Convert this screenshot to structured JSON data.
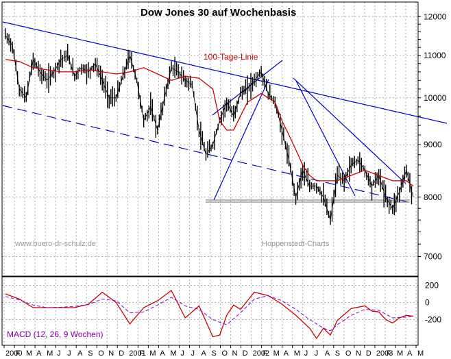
{
  "title": "Dow Jones 30 auf Wochenbasis",
  "watermark": "www.buero-dr-schulz.de",
  "source": "Hoppenstedt-Charts",
  "ma_label": "100-Tage-Linie",
  "macd_label": "MACD (12, 26, 9 Wochen)",
  "colors": {
    "price": "#000000",
    "ma": "#cc0000",
    "trend": "#0000cc",
    "macd": "#cc0000",
    "signal": "#8800cc",
    "grid": "#aaaaaa",
    "support": "#666666",
    "macd_text": "#8800aa"
  },
  "chart_data": {
    "type": "line",
    "title": "Dow Jones 30 auf Wochenbasis",
    "scale": "log",
    "y_ticks": [
      7000,
      8000,
      9000,
      10000,
      11000,
      12000
    ],
    "ylim": [
      6700,
      12400
    ],
    "x_ticks": [
      "2000",
      "F",
      "M",
      "A",
      "M",
      "J",
      "J",
      "A",
      "S",
      "O",
      "N",
      "D",
      "2001",
      "F",
      "M",
      "A",
      "M",
      "J",
      "J",
      "A",
      "S",
      "O",
      "N",
      "D",
      "2002",
      "F",
      "M",
      "A",
      "M",
      "J",
      "J",
      "A",
      "S",
      "O",
      "N",
      "D",
      "2003",
      "F",
      "M",
      "A",
      "M"
    ],
    "price": [
      [
        0,
        11500
      ],
      [
        1,
        11250
      ],
      [
        2,
        10200
      ],
      [
        3,
        10000
      ],
      [
        4,
        10900
      ],
      [
        5,
        10600
      ],
      [
        6,
        10400
      ],
      [
        7,
        10600
      ],
      [
        8,
        10900
      ],
      [
        9,
        11000
      ],
      [
        10,
        10500
      ],
      [
        11,
        10700
      ],
      [
        12,
        10600
      ],
      [
        13,
        10800
      ],
      [
        14,
        10400
      ],
      [
        15,
        10000
      ],
      [
        16,
        10000
      ],
      [
        17,
        10500
      ],
      [
        18,
        11000
      ],
      [
        19,
        10400
      ],
      [
        20,
        9500
      ],
      [
        21,
        9800
      ],
      [
        22,
        9300
      ],
      [
        23,
        10000
      ],
      [
        24,
        10700
      ],
      [
        25,
        10600
      ],
      [
        26,
        10400
      ],
      [
        27,
        10300
      ],
      [
        28,
        9300
      ],
      [
        29,
        8800
      ],
      [
        30,
        9000
      ],
      [
        31,
        9500
      ],
      [
        32,
        9900
      ],
      [
        33,
        9600
      ],
      [
        34,
        10100
      ],
      [
        35,
        10200
      ],
      [
        36,
        10400
      ],
      [
        37,
        10600
      ],
      [
        38,
        10100
      ],
      [
        39,
        9900
      ],
      [
        40,
        9300
      ],
      [
        41,
        8700
      ],
      [
        42,
        8000
      ],
      [
        43,
        8500
      ],
      [
        44,
        8200
      ],
      [
        45,
        8200
      ],
      [
        46,
        8000
      ],
      [
        47,
        7600
      ],
      [
        48,
        8400
      ],
      [
        49,
        8300
      ],
      [
        50,
        8600
      ],
      [
        51,
        8700
      ],
      [
        52,
        8500
      ],
      [
        53,
        8200
      ],
      [
        54,
        8400
      ],
      [
        55,
        8000
      ],
      [
        56,
        7800
      ],
      [
        57,
        8100
      ],
      [
        58,
        8500
      ],
      [
        59,
        8000
      ]
    ],
    "ma100": [
      [
        0,
        10900
      ],
      [
        2,
        10850
      ],
      [
        4,
        10700
      ],
      [
        6,
        10650
      ],
      [
        8,
        10600
      ],
      [
        10,
        10600
      ],
      [
        12,
        10650
      ],
      [
        14,
        10600
      ],
      [
        16,
        10550
      ],
      [
        18,
        10600
      ],
      [
        20,
        10700
      ],
      [
        22,
        10550
      ],
      [
        24,
        10400
      ],
      [
        26,
        10500
      ],
      [
        28,
        10450
      ],
      [
        30,
        10200
      ],
      [
        31,
        9500
      ],
      [
        32,
        9300
      ],
      [
        33,
        9300
      ],
      [
        34,
        9600
      ],
      [
        35,
        9900
      ],
      [
        36,
        10000
      ],
      [
        37,
        10100
      ],
      [
        38,
        10000
      ],
      [
        39,
        9900
      ],
      [
        40,
        9500
      ],
      [
        41,
        9200
      ],
      [
        42,
        8900
      ],
      [
        43,
        8600
      ],
      [
        44,
        8400
      ],
      [
        45,
        8300
      ],
      [
        46,
        8300
      ],
      [
        47,
        8300
      ],
      [
        48,
        8300
      ],
      [
        50,
        8400
      ],
      [
        52,
        8500
      ],
      [
        54,
        8400
      ],
      [
        56,
        8300
      ],
      [
        58,
        8300
      ],
      [
        59,
        8200
      ]
    ],
    "support": 8000,
    "macd": [
      [
        0,
        100
      ],
      [
        2,
        40
      ],
      [
        4,
        -60
      ],
      [
        6,
        -60
      ],
      [
        8,
        -60
      ],
      [
        10,
        -60
      ],
      [
        12,
        -20
      ],
      [
        14,
        120
      ],
      [
        16,
        0
      ],
      [
        18,
        -250
      ],
      [
        20,
        -60
      ],
      [
        22,
        20
      ],
      [
        24,
        140
      ],
      [
        26,
        -180
      ],
      [
        28,
        -40
      ],
      [
        30,
        -400
      ],
      [
        31,
        -380
      ],
      [
        32,
        -150
      ],
      [
        33,
        -30
      ],
      [
        34,
        -80
      ],
      [
        36,
        120
      ],
      [
        38,
        80
      ],
      [
        40,
        -20
      ],
      [
        42,
        -150
      ],
      [
        44,
        -300
      ],
      [
        45,
        -420
      ],
      [
        46,
        -300
      ],
      [
        47,
        -380
      ],
      [
        48,
        -210
      ],
      [
        50,
        -70
      ],
      [
        52,
        -40
      ],
      [
        53,
        -100
      ],
      [
        54,
        -110
      ],
      [
        55,
        -200
      ],
      [
        56,
        -240
      ],
      [
        57,
        -180
      ],
      [
        58,
        -150
      ],
      [
        59,
        -160
      ]
    ],
    "signal": [
      [
        0,
        70
      ],
      [
        2,
        30
      ],
      [
        4,
        -30
      ],
      [
        6,
        -60
      ],
      [
        8,
        -55
      ],
      [
        10,
        -45
      ],
      [
        12,
        -25
      ],
      [
        14,
        40
      ],
      [
        16,
        20
      ],
      [
        18,
        -120
      ],
      [
        20,
        -110
      ],
      [
        22,
        -30
      ],
      [
        24,
        60
      ],
      [
        26,
        -40
      ],
      [
        28,
        -80
      ],
      [
        30,
        -200
      ],
      [
        32,
        -260
      ],
      [
        34,
        -120
      ],
      [
        36,
        40
      ],
      [
        38,
        80
      ],
      [
        40,
        20
      ],
      [
        42,
        -80
      ],
      [
        44,
        -200
      ],
      [
        46,
        -300
      ],
      [
        47,
        -330
      ],
      [
        48,
        -260
      ],
      [
        50,
        -150
      ],
      [
        52,
        -80
      ],
      [
        54,
        -90
      ],
      [
        56,
        -180
      ],
      [
        58,
        -170
      ],
      [
        59,
        -160
      ]
    ],
    "macd_ticks": [
      200,
      0,
      -200
    ]
  }
}
